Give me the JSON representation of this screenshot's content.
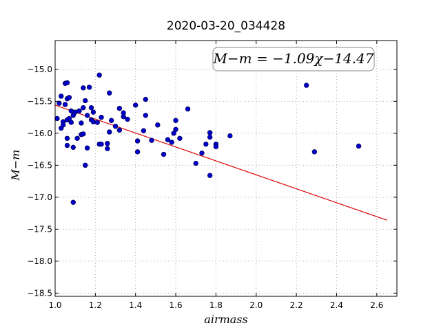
{
  "chart_data": {
    "type": "scatter",
    "title": "2020-03-20_034428",
    "xlabel": "airmass",
    "ylabel": "M−m",
    "xlim": [
      1.0,
      2.7
    ],
    "ylim": [
      -18.55,
      -14.55
    ],
    "y_inverted": true,
    "grid": true,
    "x_ticks": [
      1.0,
      1.2,
      1.4,
      1.6,
      1.8,
      2.0,
      2.2,
      2.4,
      2.6
    ],
    "x_tick_labels": [
      "1.0",
      "1.2",
      "1.4",
      "1.6",
      "1.8",
      "2.0",
      "2.2",
      "2.4",
      "2.6"
    ],
    "y_ticks": [
      -15.0,
      -15.5,
      -16.0,
      -16.5,
      -17.0,
      -17.5,
      -18.0,
      -18.5
    ],
    "y_tick_labels": [
      "−15.0",
      "−15.5",
      "−16.0",
      "−16.5",
      "−17.0",
      "−17.5",
      "−18.0",
      "−18.5"
    ],
    "annotation": "M−m = −1.09χ−14.47",
    "point_color": "#0000cc",
    "fit_color": "#dd0000",
    "fit": {
      "slope": -1.09,
      "intercept": -14.47,
      "x_range": [
        1.0,
        2.65
      ]
    },
    "points": [
      [
        1.01,
        -15.77
      ],
      [
        1.02,
        -15.53
      ],
      [
        1.03,
        -15.42
      ],
      [
        1.03,
        -15.92
      ],
      [
        1.04,
        -15.82
      ],
      [
        1.04,
        -15.87
      ],
      [
        1.05,
        -15.22
      ],
      [
        1.05,
        -15.55
      ],
      [
        1.06,
        -15.21
      ],
      [
        1.06,
        -15.46
      ],
      [
        1.06,
        -16.08
      ],
      [
        1.06,
        -16.19
      ],
      [
        1.06,
        -15.79
      ],
      [
        1.07,
        -15.77
      ],
      [
        1.07,
        -15.44
      ],
      [
        1.08,
        -15.83
      ],
      [
        1.08,
        -15.65
      ],
      [
        1.09,
        -15.72
      ],
      [
        1.09,
        -16.22
      ],
      [
        1.09,
        -17.08
      ],
      [
        1.1,
        -15.67
      ],
      [
        1.11,
        -16.08
      ],
      [
        1.12,
        -15.65
      ],
      [
        1.13,
        -15.84
      ],
      [
        1.13,
        -16.02
      ],
      [
        1.14,
        -15.6
      ],
      [
        1.14,
        -16.01
      ],
      [
        1.14,
        -15.29
      ],
      [
        1.15,
        -15.49
      ],
      [
        1.15,
        -16.5
      ],
      [
        1.16,
        -15.72
      ],
      [
        1.16,
        -16.23
      ],
      [
        1.17,
        -15.28
      ],
      [
        1.18,
        -15.6
      ],
      [
        1.18,
        -15.79
      ],
      [
        1.19,
        -15.82
      ],
      [
        1.19,
        -15.67
      ],
      [
        1.21,
        -15.83
      ],
      [
        1.22,
        -15.09
      ],
      [
        1.22,
        -16.17
      ],
      [
        1.23,
        -15.75
      ],
      [
        1.23,
        -16.17
      ],
      [
        1.26,
        -16.16
      ],
      [
        1.26,
        -16.24
      ],
      [
        1.27,
        -15.37
      ],
      [
        1.27,
        -15.98
      ],
      [
        1.28,
        -15.8
      ],
      [
        1.3,
        -15.89
      ],
      [
        1.32,
        -15.95
      ],
      [
        1.32,
        -15.61
      ],
      [
        1.34,
        -15.74
      ],
      [
        1.34,
        -15.68
      ],
      [
        1.36,
        -15.78
      ],
      [
        1.4,
        -15.56
      ],
      [
        1.41,
        -16.12
      ],
      [
        1.41,
        -16.29
      ],
      [
        1.44,
        -15.96
      ],
      [
        1.45,
        -15.72
      ],
      [
        1.45,
        -15.47
      ],
      [
        1.48,
        -16.11
      ],
      [
        1.51,
        -15.87
      ],
      [
        1.54,
        -16.33
      ],
      [
        1.56,
        -16.1
      ],
      [
        1.58,
        -16.14
      ],
      [
        1.59,
        -16.0
      ],
      [
        1.6,
        -15.8
      ],
      [
        1.6,
        -15.94
      ],
      [
        1.62,
        -16.08
      ],
      [
        1.66,
        -15.62
      ],
      [
        1.7,
        -16.47
      ],
      [
        1.73,
        -16.31
      ],
      [
        1.75,
        -16.17
      ],
      [
        1.77,
        -15.99
      ],
      [
        1.77,
        -16.06
      ],
      [
        1.77,
        -16.66
      ],
      [
        1.8,
        -16.17
      ],
      [
        1.8,
        -16.21
      ],
      [
        1.87,
        -16.04
      ],
      [
        2.25,
        -15.25
      ],
      [
        2.29,
        -16.29
      ],
      [
        2.51,
        -16.2
      ]
    ]
  }
}
